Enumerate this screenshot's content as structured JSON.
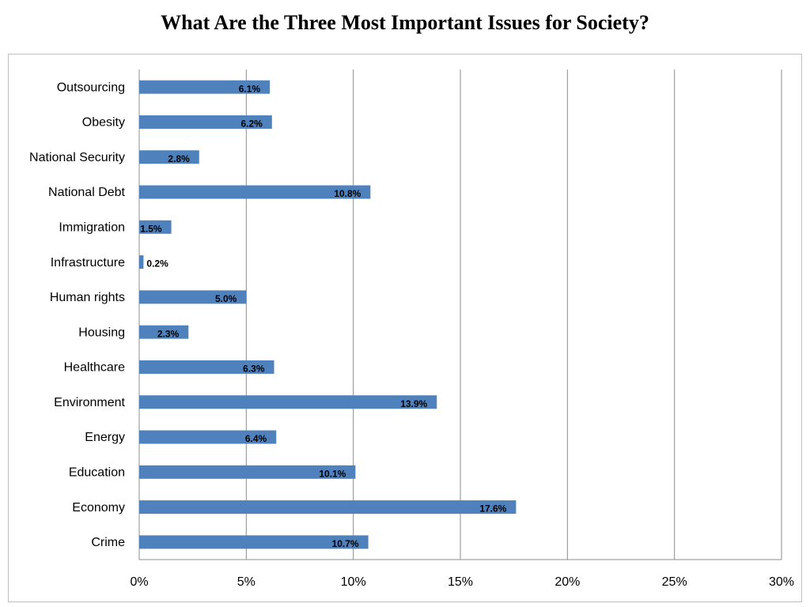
{
  "chart_data": {
    "type": "bar",
    "orientation": "horizontal",
    "title": "What Are the Three Most Important Issues for Society?",
    "categories": [
      "Outsourcing",
      "Obesity",
      "National Security",
      "National Debt",
      "Immigration",
      "Infrastructure",
      "Human rights",
      "Housing",
      "Healthcare",
      "Environment",
      "Energy",
      "Education",
      "Economy",
      "Crime"
    ],
    "values": [
      6.1,
      6.2,
      2.8,
      10.8,
      1.5,
      0.2,
      5.0,
      2.3,
      6.3,
      13.9,
      6.4,
      10.1,
      17.6,
      10.7
    ],
    "data_labels": [
      "6.1%",
      "6.2%",
      "2.8%",
      "10.8%",
      "1.5%",
      "0.2%",
      "5.0%",
      "2.3%",
      "6.3%",
      "13.9%",
      "6.4%",
      "10.1%",
      "17.6%",
      "10.7%"
    ],
    "xlim": [
      0,
      30
    ],
    "x_ticks": [
      0,
      5,
      10,
      15,
      20,
      25,
      30
    ],
    "x_tick_labels": [
      "0%",
      "5%",
      "10%",
      "15%",
      "20%",
      "25%",
      "30%"
    ],
    "xlabel": "",
    "ylabel": "",
    "grid": "vertical",
    "legend": "none",
    "colors": {
      "bar": "#4f81bd",
      "grid": "#8c8c8c",
      "frame": "#c0c0c0"
    }
  }
}
